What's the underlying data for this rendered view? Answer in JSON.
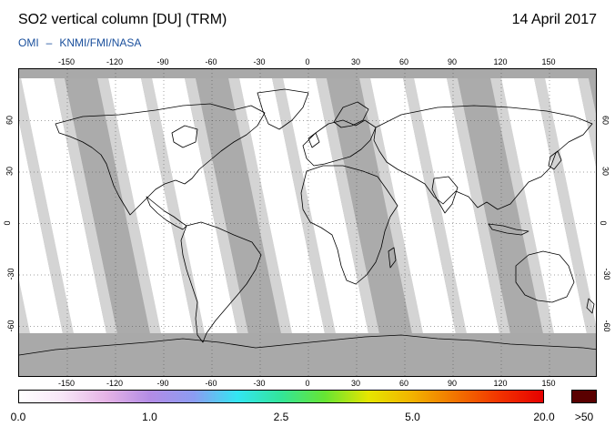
{
  "header": {
    "title": "SO2 vertical column [DU] (TRM)",
    "date": "14 April 2017",
    "credit_left": "OMI",
    "credit_sep": "–",
    "credit_right": "KNMI/FMI/NASA"
  },
  "map": {
    "projection": "equirectangular",
    "lon_range": [
      -180,
      180
    ],
    "lat_range": [
      -90,
      90
    ],
    "lon_ticks": [
      "-150",
      "-120",
      "-90",
      "-60",
      "-30",
      "0",
      "30",
      "60",
      "90",
      "120",
      "150"
    ],
    "lat_ticks": [
      "60",
      "30",
      "0",
      "-30",
      "-60"
    ],
    "grid": "dotted",
    "colors": {
      "no_data": "#a9a9a9",
      "swath_light": "#d4d4d4",
      "swath_dark": "#ababab",
      "low_value": "#ffffff"
    }
  },
  "colorbar": {
    "tick_labels": [
      "0.0",
      "1.0",
      "2.5",
      "5.0",
      "20.0"
    ],
    "overflow_label": ">50",
    "overflow_color": "#5a0000",
    "stops": [
      "#ffffff",
      "#f7e6f7",
      "#e6b3e6",
      "#b38ce6",
      "#8c9cf2",
      "#33e6f2",
      "#33e699",
      "#66e633",
      "#e6e600",
      "#f2b300",
      "#f27300",
      "#f23300",
      "#e60000"
    ]
  }
}
